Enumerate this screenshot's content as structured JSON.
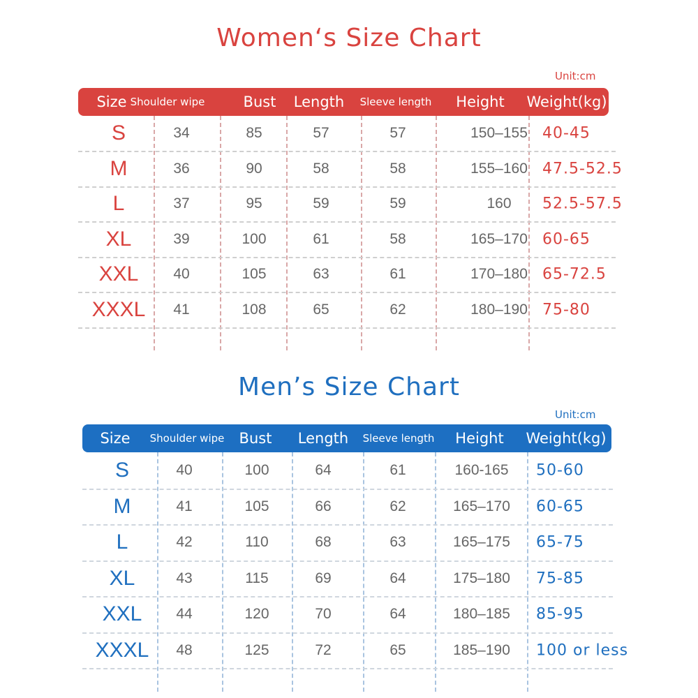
{
  "women": {
    "title": "Women‘s Size Chart",
    "unit": "Unit:cm",
    "headers": [
      "Size",
      "Shoulder wipe",
      "Bust",
      "Length",
      "Sleeve length",
      "Height",
      "Weight(kg)"
    ],
    "rows": [
      [
        "S",
        "34",
        "85",
        "57",
        "57",
        "150–155",
        "40-45"
      ],
      [
        "M",
        "36",
        "90",
        "58",
        "58",
        "155–160",
        "47.5-52.5"
      ],
      [
        "L",
        "37",
        "95",
        "59",
        "59",
        "160",
        "52.5-57.5"
      ],
      [
        "XL",
        "39",
        "100",
        "61",
        "58",
        "165–170",
        "60-65"
      ],
      [
        "XXL",
        "40",
        "105",
        "63",
        "61",
        "170–180",
        "65-72.5"
      ],
      [
        "XXXL",
        "41",
        "108",
        "65",
        "62",
        "180–190",
        "75-80"
      ]
    ],
    "colors": {
      "accent": "#d9433f"
    }
  },
  "men": {
    "title": "Men’s Size Chart",
    "unit": "Unit:cm",
    "headers": [
      "Size",
      "Shoulder wipe",
      "Bust",
      "Length",
      "Sleeve length",
      "Height",
      "Weight(kg)"
    ],
    "rows": [
      [
        "S",
        "40",
        "100",
        "64",
        "61",
        "160-165",
        "50-60"
      ],
      [
        "M",
        "41",
        "105",
        "66",
        "62",
        "165–170",
        "60-65"
      ],
      [
        "L",
        "42",
        "110",
        "68",
        "63",
        "165–175",
        "65-75"
      ],
      [
        "XL",
        "43",
        "115",
        "69",
        "64",
        "175–180",
        "75-85"
      ],
      [
        "XXL",
        "44",
        "120",
        "70",
        "64",
        "180–185",
        "85-95"
      ],
      [
        "XXXL",
        "48",
        "125",
        "72",
        "65",
        "185–190",
        "100 or less"
      ]
    ],
    "colors": {
      "accent": "#1d6fc2"
    }
  }
}
